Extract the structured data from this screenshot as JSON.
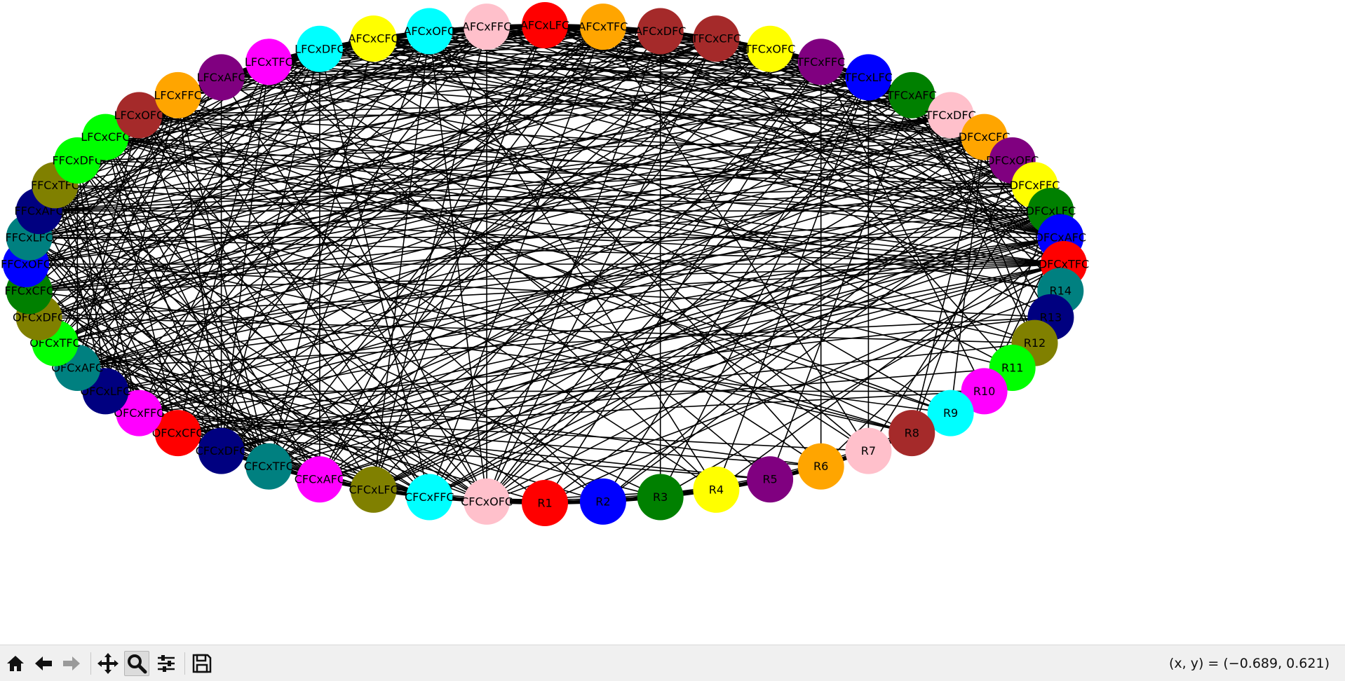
{
  "graph": {
    "edge_color": "#000000",
    "nodes": [
      {
        "label": "AFCxLFC",
        "color": "#ff0000"
      },
      {
        "label": "AFCxTFC",
        "color": "#ffa500"
      },
      {
        "label": "AFCxDFC",
        "color": "#a52a2a"
      },
      {
        "label": "TFCxCFC",
        "color": "#a52a2a"
      },
      {
        "label": "TFCxOFC",
        "color": "#ffff00"
      },
      {
        "label": "TFCxFFC",
        "color": "#800080"
      },
      {
        "label": "TFCxLFC",
        "color": "#0000ff"
      },
      {
        "label": "TFCxAFC",
        "color": "#008000"
      },
      {
        "label": "TFCxDFC",
        "color": "#ffc0cb"
      },
      {
        "label": "DFCxCFC",
        "color": "#ffa500"
      },
      {
        "label": "DFCxOFC",
        "color": "#800080"
      },
      {
        "label": "DFCxFFC",
        "color": "#ffff00"
      },
      {
        "label": "DFCxLFC",
        "color": "#008000"
      },
      {
        "label": "DFCxAFC",
        "color": "#0000ff"
      },
      {
        "label": "DFCxTFC",
        "color": "#ff0000"
      },
      {
        "label": "R14",
        "color": "#008080"
      },
      {
        "label": "R13",
        "color": "#000080"
      },
      {
        "label": "R12",
        "color": "#808000"
      },
      {
        "label": "R11",
        "color": "#00ff00"
      },
      {
        "label": "R10",
        "color": "#ff00ff"
      },
      {
        "label": "R9",
        "color": "#00ffff"
      },
      {
        "label": "R8",
        "color": "#a52a2a"
      },
      {
        "label": "R7",
        "color": "#ffc0cb"
      },
      {
        "label": "R6",
        "color": "#ffa500"
      },
      {
        "label": "R5",
        "color": "#800080"
      },
      {
        "label": "R4",
        "color": "#ffff00"
      },
      {
        "label": "R3",
        "color": "#008000"
      },
      {
        "label": "R2",
        "color": "#0000ff"
      },
      {
        "label": "R1",
        "color": "#ff0000"
      },
      {
        "label": "CFCxOFC",
        "color": "#ffc0cb"
      },
      {
        "label": "CFCxFFC",
        "color": "#00ffff"
      },
      {
        "label": "CFCxLFC",
        "color": "#808000"
      },
      {
        "label": "CFCxAFC",
        "color": "#ff00ff"
      },
      {
        "label": "CFCxTFC",
        "color": "#008080"
      },
      {
        "label": "CFCxDFC",
        "color": "#000080"
      },
      {
        "label": "OFCxCFC",
        "color": "#ff0000"
      },
      {
        "label": "OFCxFFC",
        "color": "#ff00ff"
      },
      {
        "label": "OFCxLFC",
        "color": "#000080"
      },
      {
        "label": "OFCxAFC",
        "color": "#008080"
      },
      {
        "label": "OFCxTFC",
        "color": "#00ff00"
      },
      {
        "label": "OFCxDFC",
        "color": "#808000"
      },
      {
        "label": "FFCxCFC",
        "color": "#008000"
      },
      {
        "label": "FFCxOFC",
        "color": "#0000ff"
      },
      {
        "label": "FFCxLFC",
        "color": "#008080"
      },
      {
        "label": "FFCxAFC",
        "color": "#000080"
      },
      {
        "label": "FFCxTFC",
        "color": "#808000"
      },
      {
        "label": "FFCxDFC",
        "color": "#00ff00"
      },
      {
        "label": "LFCxCFC",
        "color": "#00ff00"
      },
      {
        "label": "LFCxOFC",
        "color": "#a52a2a"
      },
      {
        "label": "LFCxFFC",
        "color": "#ffa500"
      },
      {
        "label": "LFCxAFC",
        "color": "#800080"
      },
      {
        "label": "LFCxTFC",
        "color": "#ff00ff"
      },
      {
        "label": "LFCxDFC",
        "color": "#00ffff"
      },
      {
        "label": "AFCxCFC",
        "color": "#ffff00"
      },
      {
        "label": "AFCxOFC",
        "color": "#00ffff"
      },
      {
        "label": "AFCxFFC",
        "color": "#ffc0cb"
      }
    ]
  },
  "toolbar": {
    "buttons": [
      {
        "name": "home-icon"
      },
      {
        "name": "back-arrow-icon"
      },
      {
        "name": "forward-arrow-icon"
      },
      {
        "name": "pan-move-icon"
      },
      {
        "name": "zoom-magnifier-icon"
      },
      {
        "name": "configure-subplots-icon"
      },
      {
        "name": "save-floppy-icon"
      }
    ],
    "coord_readout": "(x, y) = (−0.689, 0.621)"
  }
}
